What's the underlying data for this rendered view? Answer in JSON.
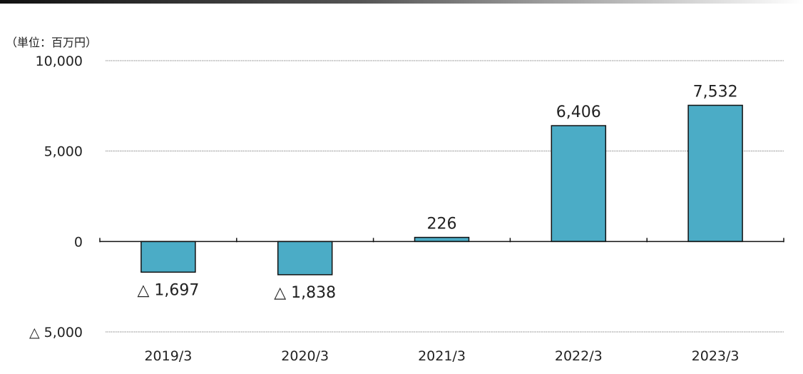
{
  "unit_label": "（単位：百万円）",
  "chart_data": {
    "type": "bar",
    "categories": [
      "2019/3",
      "2020/3",
      "2021/3",
      "2022/3",
      "2023/3"
    ],
    "values": [
      -1697,
      -1838,
      226,
      6406,
      7532
    ],
    "data_labels": [
      "△ 1,697",
      "△ 1,838",
      "226",
      "6,406",
      "7,532"
    ],
    "ylim": [
      -5000,
      10000
    ],
    "yticks": [
      {
        "value": 10000,
        "label": "10,000"
      },
      {
        "value": 5000,
        "label": "5,000"
      },
      {
        "value": 0,
        "label": "0"
      },
      {
        "value": -5000,
        "label": "△ 5,000"
      }
    ],
    "grid": true,
    "bar_color": "#4BACC6",
    "title": "",
    "xlabel": "",
    "ylabel": ""
  }
}
